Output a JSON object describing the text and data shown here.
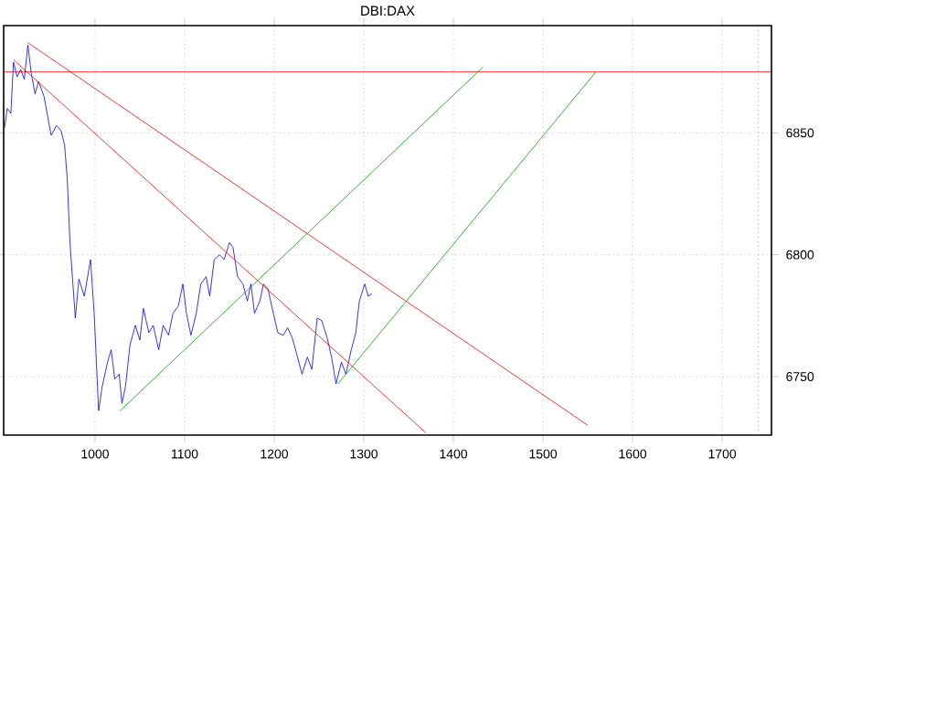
{
  "chart_data": {
    "type": "line",
    "title": "DBI:DAX",
    "xlim": [
      898,
      1755
    ],
    "ylim": [
      6726,
      6894
    ],
    "xticks": [
      1000,
      1100,
      1200,
      1300,
      1400,
      1500,
      1600,
      1700
    ],
    "yticks": [
      6750,
      6800,
      6850
    ],
    "grid": true,
    "ref_lines": [
      {
        "axis": "y",
        "value": 6875,
        "color": "#ff0000",
        "line_style": "solid"
      },
      {
        "axis": "x",
        "value": 1740,
        "color": "#606060",
        "line_style": "dotted"
      }
    ],
    "series": [
      {
        "color": "#0000ff",
        "x": [
          899,
          902,
          906,
          909,
          913,
          917,
          921,
          925,
          929,
          933,
          937,
          943,
          947,
          951,
          957,
          962,
          966,
          969,
          972,
          978,
          982,
          988,
          995,
          999,
          1004,
          1008,
          1014,
          1018,
          1022,
          1027,
          1030,
          1034,
          1039,
          1045,
          1050,
          1054,
          1060,
          1065,
          1071,
          1076,
          1082,
          1087,
          1093,
          1098,
          1102,
          1107,
          1113,
          1118,
          1124,
          1128,
          1133,
          1139,
          1144,
          1150,
          1154,
          1159,
          1165,
          1170,
          1174,
          1178,
          1184,
          1188,
          1193,
          1199,
          1204,
          1210,
          1215,
          1220,
          1226,
          1231,
          1237,
          1242,
          1248,
          1253,
          1259,
          1264,
          1269,
          1275,
          1280,
          1286,
          1291,
          1295,
          1301,
          1305,
          1309
        ],
        "values": [
          6852,
          6860,
          6858,
          6879,
          6873,
          6876,
          6872,
          6886,
          6874,
          6866,
          6871,
          6865,
          6857,
          6849,
          6853,
          6851,
          6845,
          6831,
          6805,
          6774,
          6790,
          6783,
          6798,
          6776,
          6736,
          6746,
          6756,
          6761,
          6749,
          6751,
          6739,
          6746,
          6763,
          6771,
          6765,
          6778,
          6768,
          6771,
          6761,
          6771,
          6767,
          6776,
          6779,
          6788,
          6776,
          6767,
          6776,
          6788,
          6791,
          6783,
          6798,
          6800,
          6798,
          6805,
          6803,
          6791,
          6788,
          6781,
          6788,
          6776,
          6781,
          6788,
          6786,
          6776,
          6768,
          6767,
          6770,
          6766,
          6758,
          6751,
          6758,
          6753,
          6774,
          6773,
          6766,
          6758,
          6747,
          6756,
          6751,
          6761,
          6768,
          6781,
          6788,
          6783,
          6784
        ]
      },
      {
        "color": "#ff0000",
        "x": [
          925,
          1550
        ],
        "values": [
          6887,
          6730
        ]
      },
      {
        "color": "#ff0000",
        "x": [
          909,
          1369
        ],
        "values": [
          6880,
          6727
        ]
      },
      {
        "color": "#00a000",
        "x": [
          1028,
          1433
        ],
        "values": [
          6736,
          6877
        ]
      },
      {
        "color": "#00a000",
        "x": [
          1271,
          1559
        ],
        "values": [
          6747,
          6875
        ]
      }
    ]
  }
}
